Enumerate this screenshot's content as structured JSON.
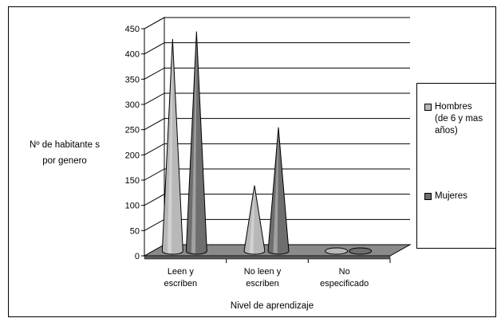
{
  "chart_data": {
    "type": "bar",
    "shape": "cone-3d",
    "categories": [
      "Leen y\nescriben",
      "No leen y\nescriben",
      "No\nespecificado"
    ],
    "series": [
      {
        "name": "Hombres\n(de 6 y mas\naños)",
        "values": [
          420,
          130,
          3
        ],
        "color": "#b8b8b8"
      },
      {
        "name": "Mujeres",
        "values": [
          435,
          245,
          4
        ],
        "color": "#6e6e6e"
      }
    ],
    "title": "",
    "xlabel": "Nivel de aprendizaje",
    "ylabel": "Nº de habitante s\npor genero",
    "ylim": [
      0,
      450
    ],
    "yticks": [
      "0",
      "50",
      "100",
      "150",
      "200",
      "250",
      "300",
      "350",
      "400",
      "450"
    ],
    "grid": true,
    "legend_position": "right"
  }
}
